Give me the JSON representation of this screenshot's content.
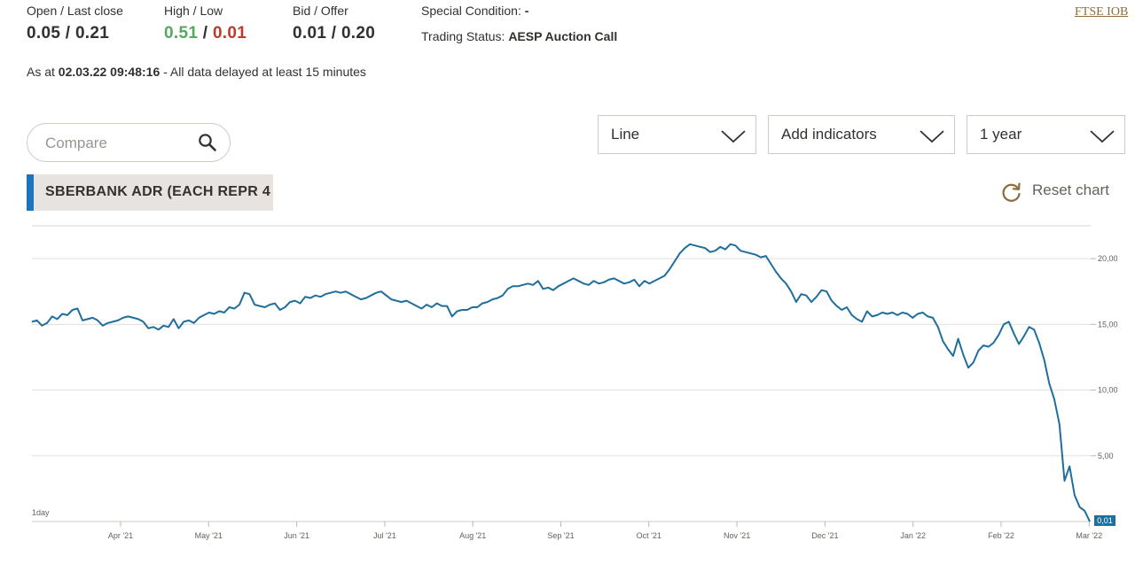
{
  "stats": {
    "open_close": {
      "label": "Open / Last close",
      "open": "0.05",
      "sep": " / ",
      "close": "0.21"
    },
    "high_low": {
      "label": "High / Low",
      "high": "0.51",
      "sep": " / ",
      "low": "0.01"
    },
    "bid_offer": {
      "label": "Bid / Offer",
      "bid": "0.01",
      "sep": " / ",
      "offer": "0.20"
    },
    "special_condition": {
      "label": "Special Condition:",
      "value": "-"
    },
    "trading_status": {
      "label": "Trading Status:",
      "value": "AESP Auction Call"
    }
  },
  "ftse_link": "FTSE IOB",
  "as_at": {
    "prefix": "As at ",
    "timestamp": "02.03.22 09:48:16",
    "suffix": " - All data delayed at least 15 minutes"
  },
  "compare": {
    "placeholder": "Compare",
    "icon": "search-icon"
  },
  "dropdowns": {
    "chart_type": "Line",
    "indicators": "Add indicators",
    "period": "1 year"
  },
  "series_tag": "SBERBANK ADR (EACH REPR 4",
  "reset_chart": "Reset chart",
  "colors": {
    "line": "#1f6e9c",
    "accent": "#1e73be",
    "high": "#55a860",
    "low": "#c0392b"
  },
  "chart_data": {
    "type": "line",
    "interval_label": "1day",
    "ylim": [
      0,
      22.5
    ],
    "y_ticks": [
      {
        "value": 20,
        "label": "20,00"
      },
      {
        "value": 15,
        "label": "15,00"
      },
      {
        "value": 10,
        "label": "10,00"
      },
      {
        "value": 5,
        "label": "5,00"
      }
    ],
    "x_ticks": [
      "Apr '21",
      "May '21",
      "Jun '21",
      "Jul '21",
      "Aug '21",
      "Sep '21",
      "Oct '21",
      "Nov '21",
      "Dec '21",
      "Jan '22",
      "Feb '22",
      "Mar '22"
    ],
    "last_value_label": "0,01",
    "series": [
      {
        "values": [
          15.2,
          15.3,
          14.9,
          15.1,
          15.6,
          15.4,
          15.8,
          15.7,
          16.1,
          16.2,
          15.3,
          15.4,
          15.5,
          15.3,
          14.9,
          15.1,
          15.2,
          15.3,
          15.5,
          15.6,
          15.5,
          15.4,
          15.2,
          14.7,
          14.8,
          14.6,
          14.9,
          14.8,
          15.4,
          14.7,
          15.2,
          15.3,
          15.1,
          15.5,
          15.7,
          15.9,
          15.8,
          16.0,
          15.9,
          16.3,
          16.2,
          16.5,
          17.4,
          17.3,
          16.5,
          16.4,
          16.3,
          16.5,
          16.6,
          16.1,
          16.3,
          16.7,
          16.8,
          16.6,
          17.1,
          17.0,
          17.2,
          17.1,
          17.3,
          17.4,
          17.5,
          17.4,
          17.5,
          17.3,
          17.1,
          16.9,
          17.0,
          17.2,
          17.4,
          17.5,
          17.2,
          16.9,
          16.8,
          16.7,
          16.8,
          16.6,
          16.4,
          16.2,
          16.5,
          16.3,
          16.6,
          16.4,
          16.4,
          15.6,
          16.0,
          16.1,
          16.1,
          16.3,
          16.3,
          16.6,
          16.7,
          16.9,
          17.0,
          17.2,
          17.7,
          17.9,
          17.9,
          18.0,
          18.1,
          18.0,
          18.3,
          17.7,
          17.8,
          17.6,
          17.9,
          18.1,
          18.3,
          18.5,
          18.3,
          18.1,
          18.0,
          18.3,
          18.1,
          18.2,
          18.4,
          18.5,
          18.3,
          18.1,
          18.2,
          18.4,
          17.9,
          18.3,
          18.1,
          18.3,
          18.5,
          18.7,
          19.2,
          19.8,
          20.4,
          20.8,
          21.1,
          21.0,
          20.9,
          20.8,
          20.5,
          20.6,
          20.9,
          20.7,
          21.1,
          21.0,
          20.6,
          20.5,
          20.4,
          20.3,
          20.1,
          20.2,
          19.6,
          19.0,
          18.5,
          18.1,
          17.5,
          16.7,
          17.3,
          17.2,
          16.7,
          17.1,
          17.6,
          17.5,
          16.8,
          16.4,
          16.1,
          16.3,
          15.7,
          15.4,
          15.2,
          16.0,
          15.6,
          15.7,
          15.9,
          15.8,
          15.9,
          15.7,
          15.9,
          15.8,
          15.5,
          15.8,
          15.9,
          15.6,
          15.5,
          14.8,
          13.7,
          13.1,
          12.6,
          13.9,
          12.7,
          11.7,
          12.1,
          13.0,
          13.4,
          13.3,
          13.6,
          14.2,
          15.0,
          15.2,
          14.3,
          13.5,
          14.1,
          14.8,
          14.6,
          13.6,
          12.3,
          10.5,
          9.3,
          7.4,
          3.1,
          4.2,
          2.0,
          1.1,
          0.8,
          0.01
        ]
      }
    ]
  }
}
